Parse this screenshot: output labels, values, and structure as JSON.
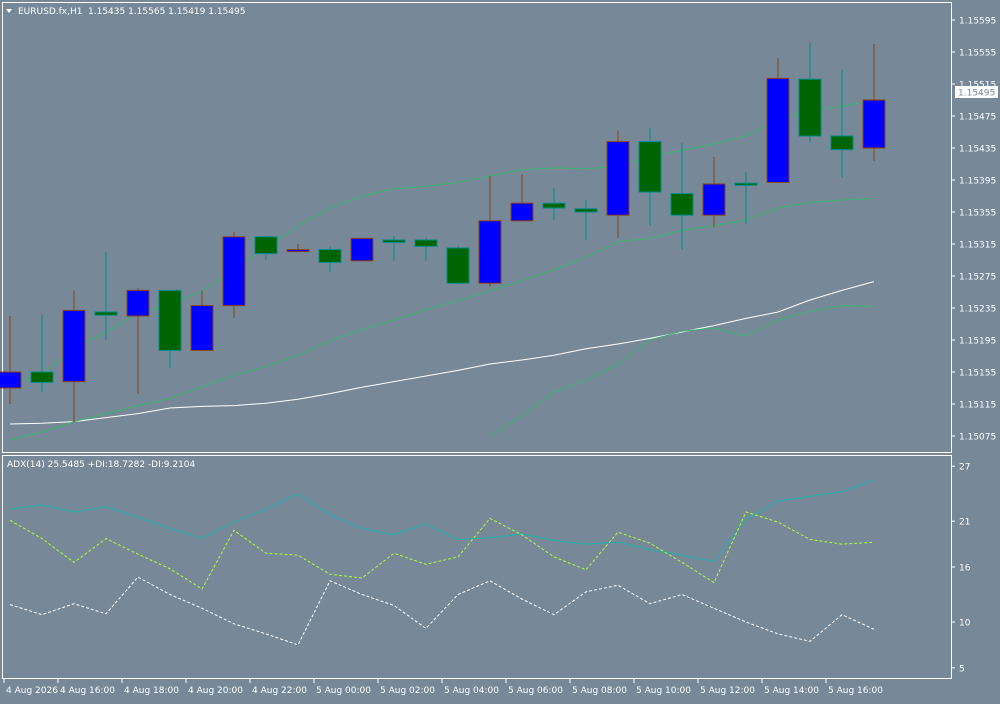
{
  "main_panel": {
    "symbol_label": "EURUSD.fx,H1",
    "ohlc_label": "1.15435 1.15565 1.15419 1.15495",
    "current_price": "1.15495",
    "price_axis_labels": [
      "1.15595",
      "1.15555",
      "1.15515",
      "1.15475",
      "1.15435",
      "1.15395",
      "1.15355",
      "1.15315",
      "1.15275",
      "1.15235",
      "1.15195",
      "1.15155",
      "1.15115",
      "1.15075"
    ]
  },
  "indicator_panel": {
    "label": "ADX(14) 25.5485 +DI:18.7282 -DI:9.2104",
    "axis_labels": [
      "27",
      "21",
      "16",
      "10",
      "5"
    ]
  },
  "time_axis_labels": [
    "4 Aug 2026",
    "4 Aug 16:00",
    "4 Aug 18:00",
    "4 Aug 20:00",
    "4 Aug 22:00",
    "5 Aug 00:00",
    "5 Aug 02:00",
    "5 Aug 04:00",
    "5 Aug 06:00",
    "5 Aug 08:00",
    "5 Aug 10:00",
    "5 Aug 12:00",
    "5 Aug 14:00",
    "5 Aug 16:00"
  ],
  "colors": {
    "background": "#778899",
    "bull_candle": "#0000FF",
    "bear_candle": "#006400",
    "bull_wick": "#8B4513",
    "bear_wick": "#008B8B",
    "bands": "#3CB371",
    "ma_white": "#FFFFFF",
    "adx_line": "#20B2AA",
    "plus_di": "#ADFF2F",
    "minus_di": "#FFFFFF"
  },
  "chart_data": [
    {
      "type": "candlestick",
      "title": "EURUSD.fx,H1",
      "ylim": [
        1.15055,
        1.15615
      ],
      "candles": [
        {
          "o": 1.15135,
          "h": 1.15225,
          "l": 1.15115,
          "c": 1.15155
        },
        {
          "o": 1.15155,
          "h": 1.15227,
          "l": 1.1513,
          "c": 1.15142
        },
        {
          "o": 1.15143,
          "h": 1.15257,
          "l": 1.15092,
          "c": 1.15232
        },
        {
          "o": 1.1523,
          "h": 1.15305,
          "l": 1.15195,
          "c": 1.15226
        },
        {
          "o": 1.15225,
          "h": 1.1526,
          "l": 1.15128,
          "c": 1.15257
        },
        {
          "o": 1.15257,
          "h": 1.15257,
          "l": 1.1516,
          "c": 1.15182
        },
        {
          "o": 1.15182,
          "h": 1.15257,
          "l": 1.15182,
          "c": 1.15238
        },
        {
          "o": 1.15238,
          "h": 1.1533,
          "l": 1.15222,
          "c": 1.15324
        },
        {
          "o": 1.15324,
          "h": 1.15325,
          "l": 1.15295,
          "c": 1.15303
        },
        {
          "o": 1.15306,
          "h": 1.15315,
          "l": 1.15305,
          "c": 1.15308
        },
        {
          "o": 1.15308,
          "h": 1.15312,
          "l": 1.1528,
          "c": 1.15292
        },
        {
          "o": 1.15294,
          "h": 1.15322,
          "l": 1.15294,
          "c": 1.15322
        },
        {
          "o": 1.1532,
          "h": 1.15325,
          "l": 1.15294,
          "c": 1.15317
        },
        {
          "o": 1.1532,
          "h": 1.15322,
          "l": 1.15294,
          "c": 1.15312
        },
        {
          "o": 1.1531,
          "h": 1.15312,
          "l": 1.15265,
          "c": 1.15266
        },
        {
          "o": 1.15266,
          "h": 1.154,
          "l": 1.15262,
          "c": 1.15344
        },
        {
          "o": 1.15344,
          "h": 1.15402,
          "l": 1.15344,
          "c": 1.15366
        },
        {
          "o": 1.15366,
          "h": 1.15385,
          "l": 1.15345,
          "c": 1.1536
        },
        {
          "o": 1.15359,
          "h": 1.1537,
          "l": 1.1532,
          "c": 1.15355
        },
        {
          "o": 1.15351,
          "h": 1.15457,
          "l": 1.15322,
          "c": 1.15443
        },
        {
          "o": 1.15443,
          "h": 1.1546,
          "l": 1.15338,
          "c": 1.1538
        },
        {
          "o": 1.15378,
          "h": 1.15441,
          "l": 1.15308,
          "c": 1.15351
        },
        {
          "o": 1.15351,
          "h": 1.15424,
          "l": 1.15336,
          "c": 1.1539
        },
        {
          "o": 1.15391,
          "h": 1.15405,
          "l": 1.1534,
          "c": 1.1539
        },
        {
          "o": 1.15392,
          "h": 1.15548,
          "l": 1.15392,
          "c": 1.15522
        },
        {
          "o": 1.15521,
          "h": 1.15567,
          "l": 1.15442,
          "c": 1.1545
        },
        {
          "o": 1.1545,
          "h": 1.15533,
          "l": 1.15398,
          "c": 1.15433
        },
        {
          "o": 1.15435,
          "h": 1.15565,
          "l": 1.15419,
          "c": 1.15495
        }
      ],
      "ma_series": [
        {
          "name": "ma_white",
          "values": [
            1.1509,
            1.15091,
            1.15093,
            1.15098,
            1.15103,
            1.1511,
            1.15112,
            1.15113,
            1.15116,
            1.15121,
            1.15128,
            1.15136,
            1.15143,
            1.1515,
            1.15157,
            1.15165,
            1.1517,
            1.15176,
            1.15184,
            1.1519,
            1.15197,
            1.15205,
            1.15213,
            1.15222,
            1.1523,
            1.15245,
            1.15257,
            1.15268
          ]
        },
        {
          "name": "upper_band",
          "values": [
            1.1514,
            1.15152,
            1.15185,
            1.15205,
            1.15228,
            1.1524,
            1.15256,
            1.15283,
            1.1531,
            1.15338,
            1.1536,
            1.15375,
            1.15384,
            1.15387,
            1.15392,
            1.154,
            1.15408,
            1.1541,
            1.15409,
            1.15412,
            1.15425,
            1.15432,
            1.1544,
            1.1545,
            1.1547,
            1.15483,
            1.15487,
            1.15495
          ]
        },
        {
          "name": "middle_band",
          "values": [
            1.1507,
            1.1508,
            1.15093,
            1.15103,
            1.15113,
            1.15122,
            1.15137,
            1.15151,
            1.15162,
            1.15176,
            1.15194,
            1.15208,
            1.1522,
            1.15233,
            1.15244,
            1.15257,
            1.15269,
            1.15283,
            1.15298,
            1.15318,
            1.15322,
            1.15332,
            1.15338,
            1.15345,
            1.1536,
            1.15367,
            1.1537,
            1.15372
          ]
        },
        {
          "name": "lower_band",
          "values": [
            null,
            null,
            null,
            null,
            null,
            null,
            null,
            null,
            null,
            null,
            null,
            null,
            null,
            null,
            null,
            1.15075,
            1.151,
            1.1513,
            1.15145,
            1.15165,
            1.15195,
            1.15206,
            1.1521,
            1.152,
            1.1522,
            1.15231,
            1.15238,
            1.15237
          ]
        }
      ]
    },
    {
      "type": "line",
      "title": "ADX(14) 25.5485 +DI:18.7282 -DI:9.2104",
      "ylim": [
        4,
        28
      ],
      "series": [
        {
          "name": "ADX",
          "values": [
            22.3,
            22.8,
            22.0,
            22.6,
            21.4,
            20.2,
            19.1,
            20.9,
            22.3,
            24.0,
            21.7,
            20.2,
            19.5,
            20.7,
            19.0,
            19.2,
            19.6,
            18.9,
            18.5,
            18.7,
            17.9,
            17.3,
            16.6,
            21.2,
            23.2,
            23.7,
            24.2,
            25.5
          ]
        },
        {
          "name": "+DI",
          "values": [
            21.1,
            19.1,
            16.5,
            19.1,
            17.4,
            15.8,
            13.6,
            20.0,
            17.5,
            17.3,
            15.2,
            14.8,
            17.5,
            16.3,
            17.1,
            21.3,
            19.5,
            17.1,
            15.7,
            19.8,
            18.6,
            16.5,
            14.3,
            22.0,
            20.9,
            19.0,
            18.5,
            18.7
          ]
        },
        {
          "name": "-DI",
          "values": [
            11.9,
            10.8,
            12.0,
            10.9,
            14.9,
            13.0,
            11.5,
            9.8,
            8.7,
            7.5,
            14.5,
            13.0,
            11.8,
            9.3,
            13.0,
            14.5,
            12.5,
            10.8,
            13.3,
            14.0,
            12.0,
            13.0,
            11.5,
            10.0,
            8.7,
            7.9,
            10.8,
            9.2
          ]
        }
      ]
    }
  ]
}
